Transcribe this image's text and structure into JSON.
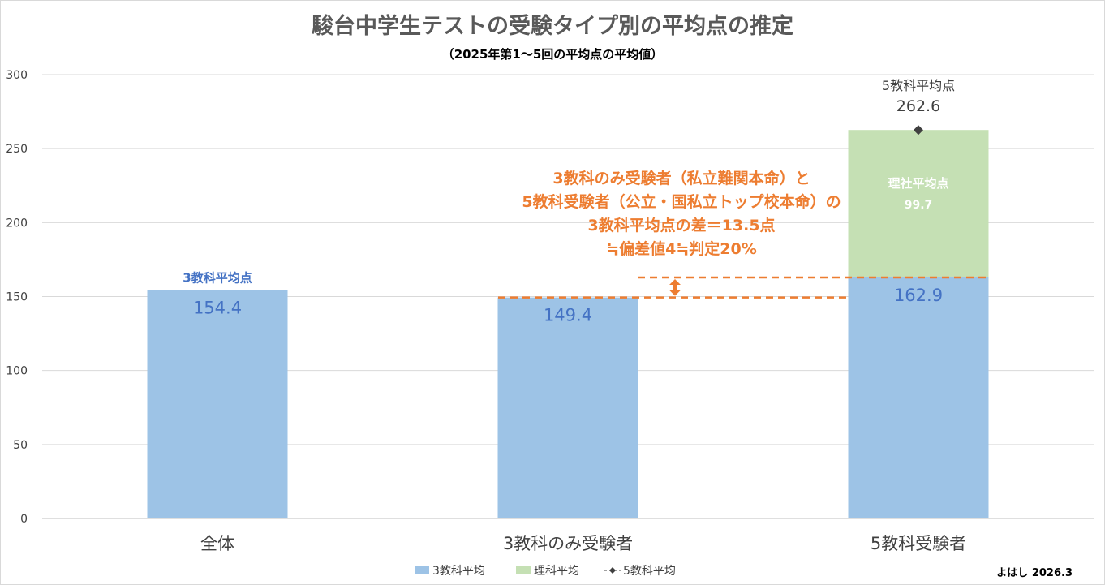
{
  "title": "駿台中学生テストの受験タイプ別の平均点の推定",
  "subtitle": "（2025年第1～5回の平均点の平均値）",
  "credit": "よはし 2026.3",
  "annotation_lines": [
    "3教科のみ受験者（私立難関本命）と",
    "5教科受験者（公立・国私立トップ校本命）の",
    "3教科平均点の差＝13.5点",
    "≒偏差値4≒判定20%"
  ],
  "colors": {
    "blue": "#9dc3e6",
    "green": "#c5e0b4",
    "orange": "#ed7d31",
    "blue_text": "#4472c4",
    "marker": "#404040"
  },
  "chart_data": {
    "type": "bar",
    "stacked": true,
    "categories": [
      "全体",
      "3教科のみ受験者",
      "5教科受験者"
    ],
    "series": [
      {
        "name": "3教科平均",
        "values": [
          154.4,
          149.4,
          162.9
        ]
      },
      {
        "name": "理科平均",
        "values": [
          null,
          null,
          99.7
        ]
      },
      {
        "name": "5教科平均",
        "type": "line-marker",
        "values": [
          null,
          null,
          262.6
        ]
      }
    ],
    "bar_top_labels": [
      "3教科平均点",
      "",
      "理社平均点"
    ],
    "total_label": "5教科平均点",
    "ylim": [
      0,
      300
    ],
    "yticks": [
      0,
      50,
      100,
      150,
      200,
      250,
      300
    ],
    "grid": true,
    "legend": "bottom"
  }
}
